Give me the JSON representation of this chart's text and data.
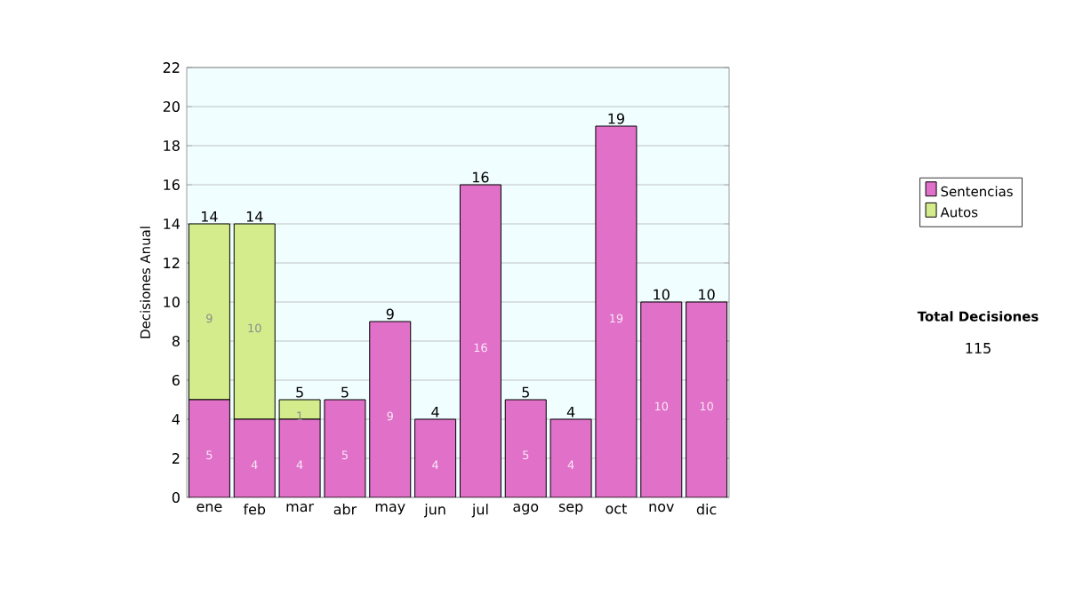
{
  "chart_data": {
    "type": "bar",
    "stacked": true,
    "ylabel": "Decisiones Anual",
    "categories": [
      "ene",
      "feb",
      "mar",
      "abr",
      "may",
      "jun",
      "jul",
      "ago",
      "sep",
      "oct",
      "nov",
      "dic"
    ],
    "series": [
      {
        "name": "Sentencias",
        "color": "#e070c8",
        "values": [
          5,
          4,
          4,
          5,
          9,
          4,
          16,
          5,
          4,
          19,
          10,
          10
        ]
      },
      {
        "name": "Autos",
        "color": "#d4ec8c",
        "values": [
          9,
          10,
          1,
          null,
          null,
          null,
          null,
          null,
          null,
          null,
          null,
          null
        ]
      }
    ],
    "totals": [
      "14",
      "14",
      "5",
      "5",
      "9",
      "4",
      "16",
      "5",
      "4",
      "19",
      "10",
      "10"
    ],
    "data_labels": true,
    "ylim": [
      0,
      22
    ],
    "yticks": [
      0,
      2,
      4,
      6,
      8,
      10,
      12,
      14,
      16,
      18,
      20,
      22
    ],
    "grid": "y",
    "legend": "right",
    "annotations": [
      "Total Decisiones",
      "115"
    ]
  }
}
